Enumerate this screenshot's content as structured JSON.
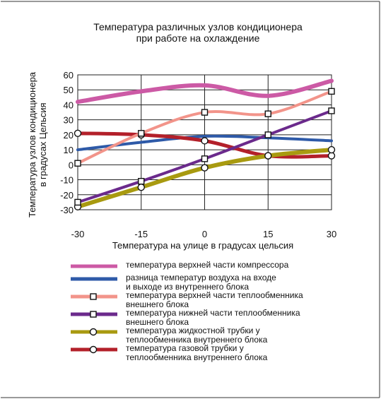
{
  "chart_data": {
    "type": "line",
    "title": [
      "Температура различных узлов кондиционера",
      "при работе на охлаждение"
    ],
    "xlabel": "Температура на улице в градусах цельсия",
    "ylabel": [
      "Температура узлов кондиционера",
      "в градусах Цельсия"
    ],
    "x": [
      -30,
      -15,
      0,
      15,
      30
    ],
    "x_ticks": [
      "-30",
      "-15",
      "0",
      "15",
      "30"
    ],
    "y_ticks": [
      "60",
      "50",
      "40",
      "30",
      "20",
      "10",
      "0",
      "-10",
      "-20",
      "-30"
    ],
    "ylim": [
      -30,
      60
    ],
    "xlim": [
      -30,
      30
    ],
    "grid": true,
    "legend_position": "bottom",
    "series": [
      {
        "name": "температура верхней части компрессора",
        "color": "#cc5aa5",
        "marker": "none",
        "values": [
          42,
          49,
          53,
          46,
          56
        ]
      },
      {
        "name": "разница температур воздуха на входе и выходе из внутреннего блока",
        "color": "#2e5aa8",
        "marker": "none",
        "values": [
          10,
          15,
          19,
          18,
          16
        ]
      },
      {
        "name": "температура верхней части теплообменника внешнего блока",
        "color": "#f2948a",
        "marker": "square",
        "values": [
          1,
          21,
          35,
          34,
          49
        ]
      },
      {
        "name": "температура нижней части теплообменника внешнего блока",
        "color": "#6b2a8c",
        "marker": "square",
        "values": [
          -25,
          -11,
          4,
          20,
          36
        ]
      },
      {
        "name": "температура жидкостной трубки у теплообменника внутреннего блока",
        "color": "#a89a10",
        "marker": "circle",
        "values": [
          -28,
          -15,
          -2,
          6,
          10
        ]
      },
      {
        "name": "температура газовой трубки у теплообменника внутреннего блока",
        "color": "#b3202a",
        "marker": "circle",
        "values": [
          21,
          20,
          16,
          6,
          6
        ]
      }
    ]
  },
  "legend": {
    "items": [
      [
        "температура верхней части компрессора"
      ],
      [
        "разница температур воздуха на входе",
        "и выходе из внутреннего блока"
      ],
      [
        "температура верхней части теплообменника",
        "внешнего блока"
      ],
      [
        "температура нижней части теплообменника",
        "внешнего блока"
      ],
      [
        "температура жидкостной трубки у",
        "теплообменника внутреннего блока"
      ],
      [
        "температура газовой трубки у",
        "теплообменника внутреннего блока"
      ]
    ]
  }
}
